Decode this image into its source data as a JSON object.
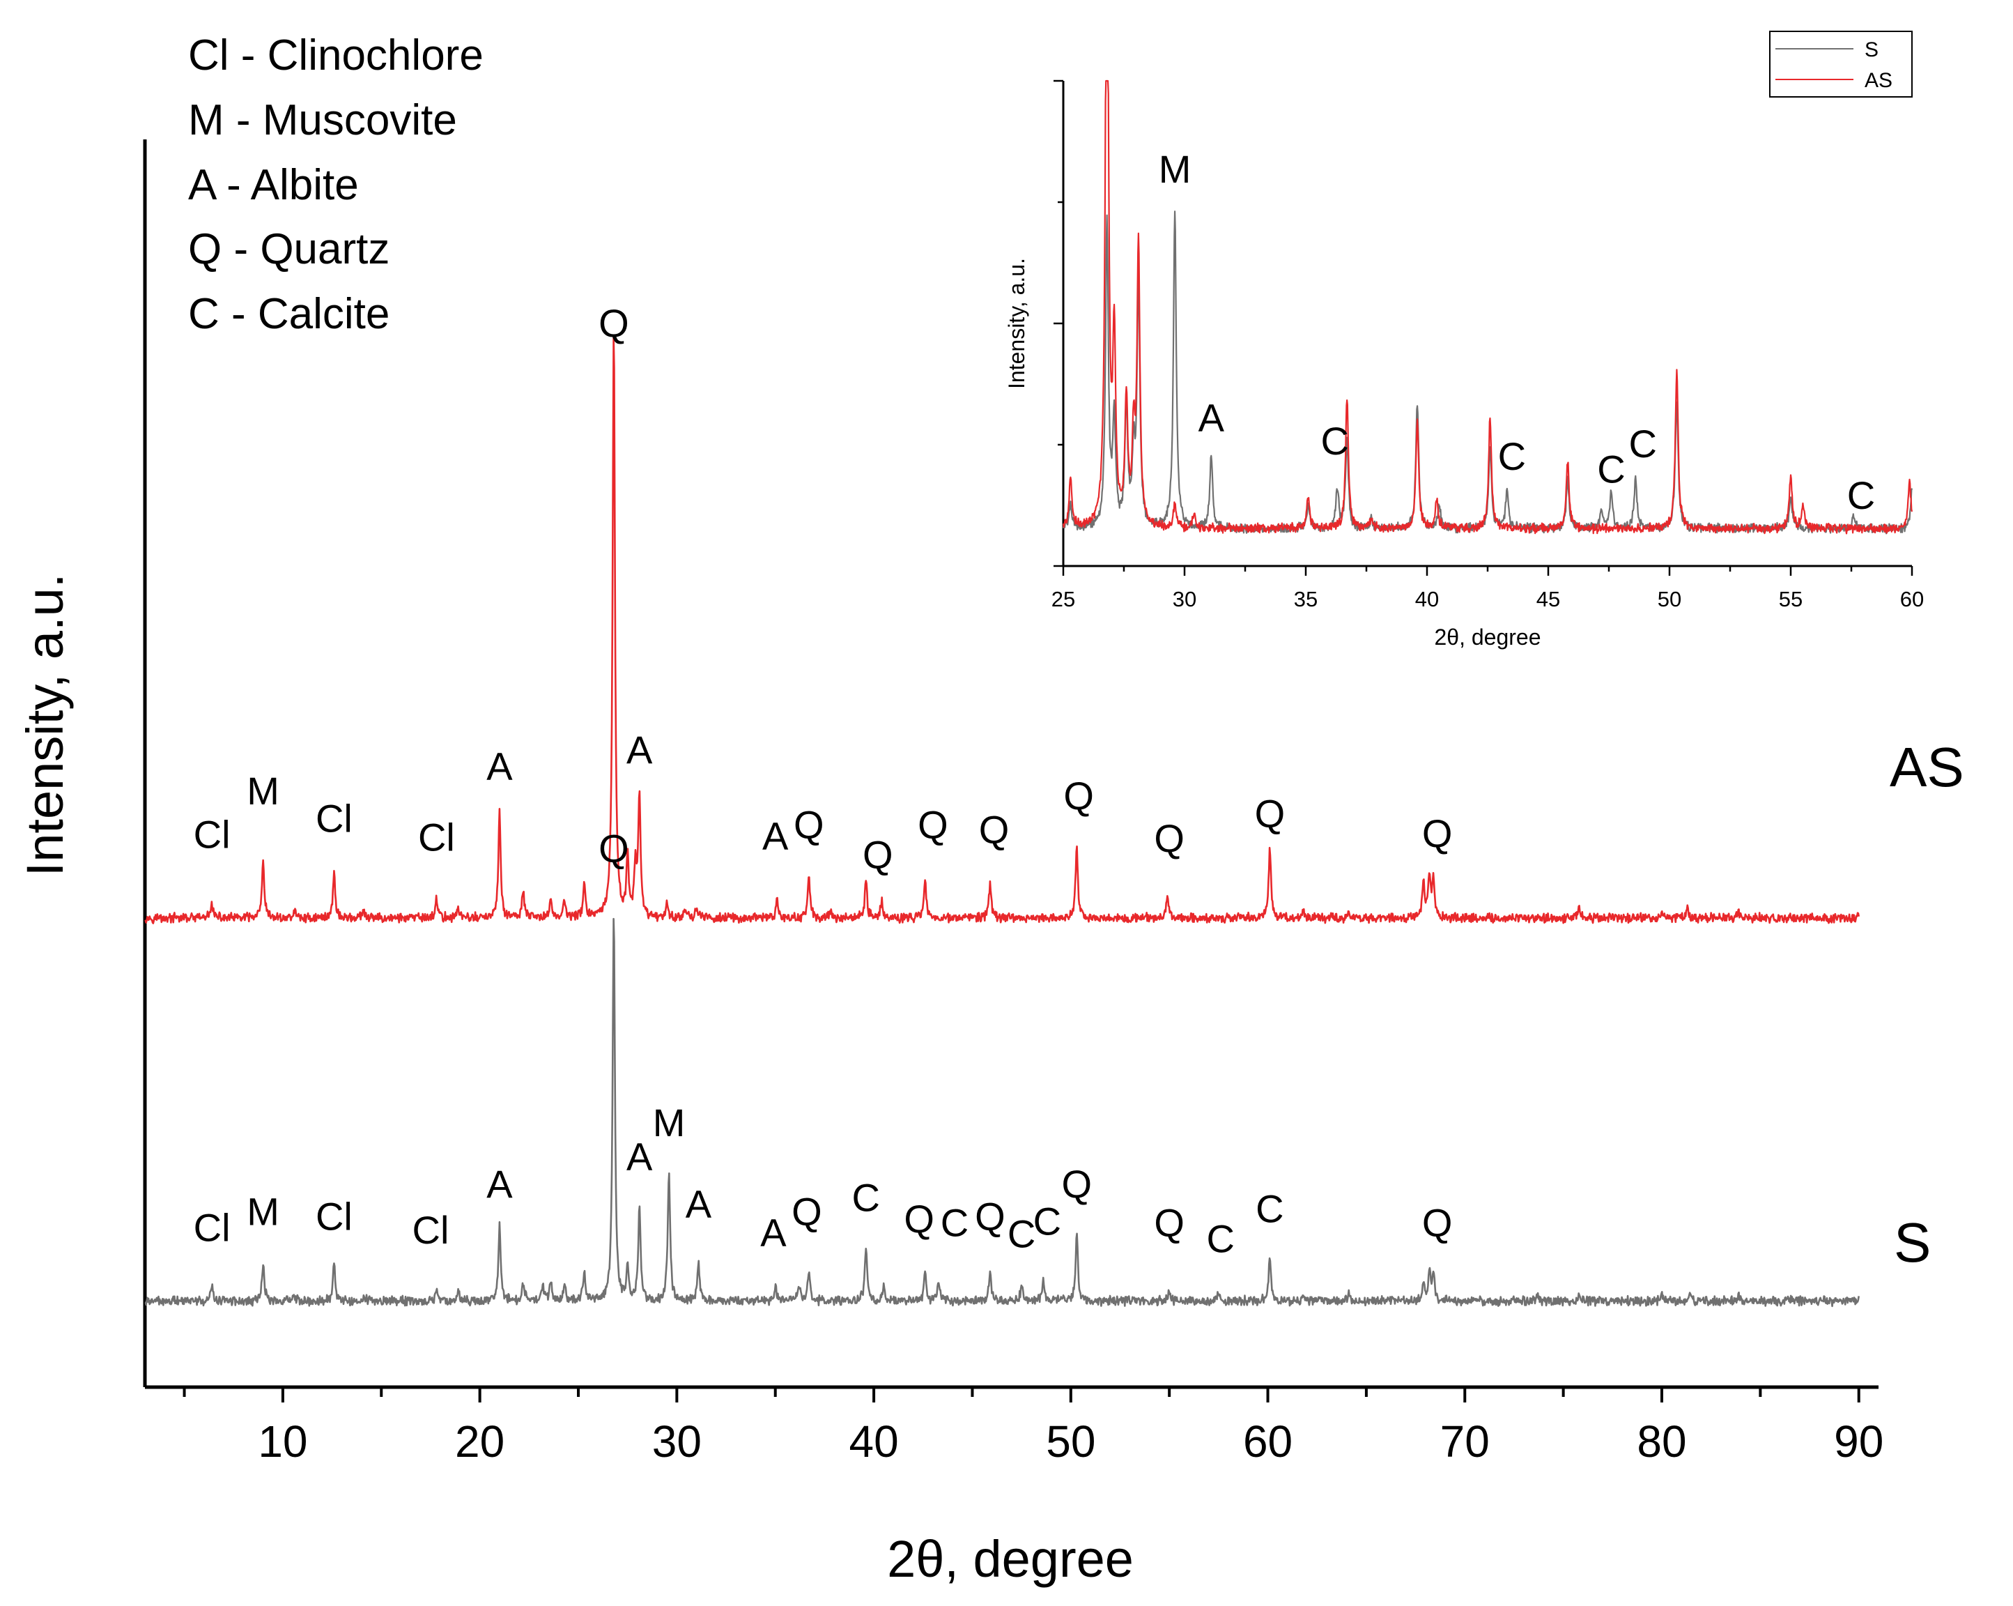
{
  "chart_data": [
    {
      "type": "line",
      "name": "main XRD patterns",
      "xlabel": "2θ, degree",
      "ylabel": "Intensity, a.u.",
      "xlim": [
        3,
        91
      ],
      "ylim": [
        0,
        100
      ],
      "x_ticks": [
        "10",
        "20",
        "30",
        "40",
        "50",
        "60",
        "70",
        "80",
        "90"
      ],
      "legend_lines": [
        "Cl - Clinochlore",
        "M - Muscovite",
        "A - Albite",
        "Q - Quartz",
        "C - Calcite"
      ],
      "colors": {
        "AS": "#e8282b",
        "S": "#707070"
      },
      "series": [
        {
          "name": "AS",
          "baseline": 37.6,
          "x_range": [
            3,
            90
          ],
          "peaks": [
            [
              6.4,
              1.2
            ],
            [
              9.0,
              4.4
            ],
            [
              10.6,
              0.6
            ],
            [
              12.6,
              3.6
            ],
            [
              14.1,
              0.5
            ],
            [
              17.8,
              1.6
            ],
            [
              18.9,
              0.9
            ],
            [
              21.0,
              8.3
            ],
            [
              22.2,
              2.2
            ],
            [
              23.6,
              1.5
            ],
            [
              24.3,
              1.4
            ],
            [
              25.3,
              2.8
            ],
            [
              26.8,
              47.5
            ],
            [
              27.5,
              5.0
            ],
            [
              27.9,
              4.0
            ],
            [
              28.1,
              9.5
            ],
            [
              29.5,
              1.2
            ],
            [
              30.4,
              0.8
            ],
            [
              31.0,
              0.9
            ],
            [
              35.1,
              1.4
            ],
            [
              36.7,
              3.4
            ],
            [
              37.8,
              0.5
            ],
            [
              39.6,
              3.0
            ],
            [
              40.4,
              1.4
            ],
            [
              42.6,
              3.2
            ],
            [
              45.9,
              2.8
            ],
            [
              50.3,
              5.6
            ],
            [
              54.9,
              1.8
            ],
            [
              60.1,
              5.6
            ],
            [
              61.8,
              0.5
            ],
            [
              64.1,
              0.5
            ],
            [
              67.9,
              2.8
            ],
            [
              68.2,
              3.2
            ],
            [
              68.4,
              3.2
            ],
            [
              75.8,
              0.7
            ],
            [
              80.0,
              0.6
            ],
            [
              81.3,
              0.8
            ],
            [
              83.9,
              0.5
            ]
          ]
        },
        {
          "name": "S",
          "baseline": 6.9,
          "x_range": [
            3,
            90
          ],
          "peaks": [
            [
              6.4,
              1.2
            ],
            [
              9.0,
              3.0
            ],
            [
              10.6,
              0.5
            ],
            [
              12.6,
              3.1
            ],
            [
              14.1,
              0.5
            ],
            [
              17.8,
              1.0
            ],
            [
              18.9,
              0.8
            ],
            [
              21.0,
              6.0
            ],
            [
              22.2,
              1.4
            ],
            [
              23.2,
              1.2
            ],
            [
              23.6,
              1.6
            ],
            [
              24.3,
              1.3
            ],
            [
              25.3,
              2.3
            ],
            [
              26.8,
              31.2
            ],
            [
              27.5,
              2.7
            ],
            [
              28.1,
              7.4
            ],
            [
              29.6,
              10.4
            ],
            [
              31.1,
              3.1
            ],
            [
              35.0,
              1.2
            ],
            [
              36.2,
              1.4
            ],
            [
              36.7,
              2.5
            ],
            [
              39.6,
              4.4
            ],
            [
              40.5,
              1.2
            ],
            [
              42.6,
              2.5
            ],
            [
              43.3,
              1.5
            ],
            [
              45.9,
              2.3
            ],
            [
              47.5,
              1.4
            ],
            [
              48.6,
              1.5
            ],
            [
              50.3,
              5.3
            ],
            [
              55.0,
              0.8
            ],
            [
              57.5,
              0.6
            ],
            [
              60.1,
              3.6
            ],
            [
              61.8,
              0.4
            ],
            [
              64.1,
              0.5
            ],
            [
              67.9,
              1.6
            ],
            [
              68.2,
              2.2
            ],
            [
              68.4,
              2.2
            ],
            [
              73.7,
              0.5
            ],
            [
              75.8,
              0.5
            ],
            [
              80.0,
              0.6
            ],
            [
              81.4,
              0.5
            ],
            [
              83.9,
              0.5
            ]
          ]
        }
      ],
      "annotations": {
        "AS": [
          {
            "x": 6.4,
            "y": 43.2,
            "text": "Cl"
          },
          {
            "x": 9.0,
            "y": 46.7,
            "text": "M"
          },
          {
            "x": 12.6,
            "y": 44.5,
            "text": "Cl"
          },
          {
            "x": 17.8,
            "y": 43.0,
            "text": "Cl"
          },
          {
            "x": 21.0,
            "y": 48.7,
            "text": "A"
          },
          {
            "x": 26.8,
            "y": 84.2,
            "text": "Q"
          },
          {
            "x": 28.1,
            "y": 50.0,
            "text": "A"
          },
          {
            "x": 35.0,
            "y": 43.1,
            "text": "A"
          },
          {
            "x": 36.7,
            "y": 44.0,
            "text": "Q"
          },
          {
            "x": 40.2,
            "y": 41.6,
            "text": "Q"
          },
          {
            "x": 43.0,
            "y": 44.0,
            "text": "Q"
          },
          {
            "x": 46.1,
            "y": 43.6,
            "text": "Q"
          },
          {
            "x": 50.4,
            "y": 46.3,
            "text": "Q"
          },
          {
            "x": 55.0,
            "y": 42.9,
            "text": "Q"
          },
          {
            "x": 60.1,
            "y": 44.9,
            "text": "Q"
          },
          {
            "x": 68.6,
            "y": 43.3,
            "text": "Q"
          }
        ],
        "S": [
          {
            "x": 6.4,
            "y": 11.7,
            "text": "Cl"
          },
          {
            "x": 9.0,
            "y": 13.0,
            "text": "M"
          },
          {
            "x": 12.6,
            "y": 12.6,
            "text": "Cl"
          },
          {
            "x": 17.5,
            "y": 11.5,
            "text": "Cl"
          },
          {
            "x": 21.0,
            "y": 15.2,
            "text": "A"
          },
          {
            "x": 26.8,
            "y": 42.1,
            "text": "Q"
          },
          {
            "x": 28.1,
            "y": 17.4,
            "text": "A"
          },
          {
            "x": 29.6,
            "y": 20.1,
            "text": "M"
          },
          {
            "x": 31.1,
            "y": 13.6,
            "text": "A"
          },
          {
            "x": 34.9,
            "y": 11.3,
            "text": "A"
          },
          {
            "x": 36.6,
            "y": 13.0,
            "text": "Q"
          },
          {
            "x": 39.6,
            "y": 14.1,
            "text": "C"
          },
          {
            "x": 42.3,
            "y": 12.4,
            "text": "Q"
          },
          {
            "x": 44.1,
            "y": 12.1,
            "text": "C"
          },
          {
            "x": 45.9,
            "y": 12.6,
            "text": "Q"
          },
          {
            "x": 47.5,
            "y": 11.2,
            "text": "C"
          },
          {
            "x": 48.8,
            "y": 12.2,
            "text": "C"
          },
          {
            "x": 50.3,
            "y": 15.2,
            "text": "Q"
          },
          {
            "x": 55.0,
            "y": 12.1,
            "text": "Q"
          },
          {
            "x": 57.6,
            "y": 10.8,
            "text": "C"
          },
          {
            "x": 60.1,
            "y": 13.2,
            "text": "C"
          },
          {
            "x": 68.6,
            "y": 12.1,
            "text": "Q"
          }
        ]
      }
    },
    {
      "type": "line",
      "name": "inset 25–60 degrees",
      "xlabel": "2θ, degree",
      "ylabel": "Intensity, a.u.",
      "xlim": [
        25,
        60
      ],
      "ylim": [
        0,
        100
      ],
      "x_ticks": [
        "25",
        "30",
        "35",
        "40",
        "45",
        "50",
        "55",
        "60"
      ],
      "legend": [
        "S",
        "AS"
      ],
      "colors": {
        "S": "#707070",
        "AS": "#e8282b"
      },
      "series": [
        {
          "name": "S",
          "baseline": 7.7,
          "x_range": [
            25,
            60
          ],
          "peaks": [
            [
              25.3,
              5.0
            ],
            [
              26.8,
              63.0
            ],
            [
              27.1,
              22.0
            ],
            [
              27.6,
              25.0
            ],
            [
              27.9,
              14.0
            ],
            [
              28.1,
              50.0
            ],
            [
              29.6,
              65.0
            ],
            [
              31.1,
              15.0
            ],
            [
              35.1,
              5.0
            ],
            [
              36.3,
              8.0
            ],
            [
              36.7,
              18.0
            ],
            [
              37.7,
              2.0
            ],
            [
              39.6,
              26.0
            ],
            [
              40.5,
              5.0
            ],
            [
              42.6,
              17.0
            ],
            [
              43.3,
              8.0
            ],
            [
              45.8,
              10.0
            ],
            [
              47.2,
              4.0
            ],
            [
              47.6,
              8.0
            ],
            [
              48.6,
              10.0
            ],
            [
              50.3,
              27.0
            ],
            [
              55.0,
              7.0
            ],
            [
              57.6,
              3.0
            ],
            [
              60.0,
              8.0
            ]
          ]
        },
        {
          "name": "AS",
          "baseline": 7.7,
          "x_range": [
            25,
            60
          ],
          "peaks": [
            [
              25.3,
              10.0
            ],
            [
              26.8,
              150.0
            ],
            [
              27.1,
              38.0
            ],
            [
              27.6,
              26.0
            ],
            [
              27.9,
              18.0
            ],
            [
              28.1,
              58.0
            ],
            [
              29.6,
              5.0
            ],
            [
              30.4,
              3.0
            ],
            [
              35.1,
              7.0
            ],
            [
              36.7,
              27.0
            ],
            [
              37.7,
              2.0
            ],
            [
              39.6,
              22.0
            ],
            [
              40.4,
              6.0
            ],
            [
              42.6,
              23.0
            ],
            [
              45.8,
              14.0
            ],
            [
              50.3,
              33.0
            ],
            [
              55.0,
              11.0
            ],
            [
              55.5,
              5.0
            ],
            [
              59.9,
              10.0
            ]
          ]
        }
      ],
      "annotations": [
        {
          "x": 29.6,
          "y": 79.0,
          "text": "M"
        },
        {
          "x": 31.1,
          "y": 27.8,
          "text": "A"
        },
        {
          "x": 36.2,
          "y": 23.0,
          "text": "C"
        },
        {
          "x": 43.5,
          "y": 19.8,
          "text": "C"
        },
        {
          "x": 47.6,
          "y": 17.2,
          "text": "C"
        },
        {
          "x": 48.9,
          "y": 22.4,
          "text": "C"
        },
        {
          "x": 57.9,
          "y": 11.8,
          "text": "C"
        }
      ]
    }
  ]
}
